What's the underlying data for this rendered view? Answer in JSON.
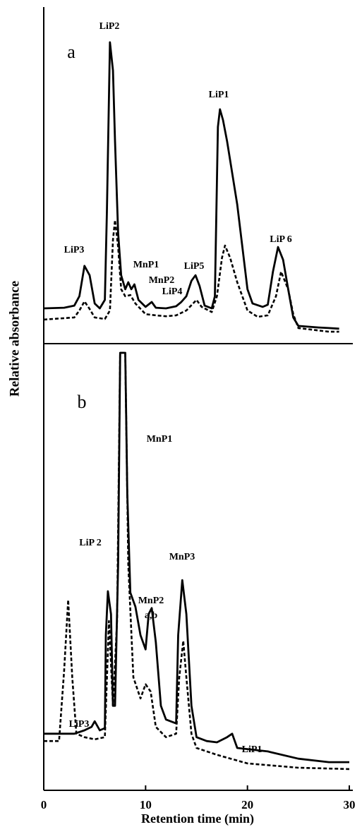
{
  "chart_data": [
    {
      "type": "line",
      "panel_label": "a",
      "ylabel": "Relative  absorbance",
      "xlim": [
        0,
        30
      ],
      "ylim": [
        0,
        100
      ],
      "annotations": [
        "LiP2",
        "LiP3",
        "MnP1",
        "MnP2",
        "LiP4",
        "LiP5",
        "LiP1",
        "LiP 6"
      ],
      "series": [
        {
          "style": "solid",
          "color": "#000000",
          "x": [
            0,
            2,
            3,
            3.5,
            4,
            4.5,
            5,
            5.5,
            6,
            6.2,
            6.5,
            6.8,
            7,
            7.3,
            7.6,
            8,
            8.3,
            8.6,
            8.9,
            9.3,
            10,
            10.6,
            11,
            12,
            13,
            13.5,
            14,
            14.5,
            14.9,
            15.3,
            15.8,
            16.5,
            16.8,
            17.1,
            17.3,
            17.6,
            18,
            19,
            20,
            20.5,
            21.5,
            22,
            22.5,
            23,
            23.5,
            24,
            24.5,
            25,
            27,
            28,
            29
          ],
          "values": [
            10,
            10.2,
            10.9,
            14,
            24,
            20.9,
            11.6,
            10,
            12.8,
            41.9,
            97.7,
            88.4,
            65.1,
            34.9,
            20.9,
            16.3,
            18.6,
            16.3,
            17.9,
            12.8,
            10.5,
            12.1,
            10.2,
            10,
            10.7,
            12.1,
            14,
            19.1,
            20.9,
            17.4,
            10.9,
            10,
            14,
            69.8,
            75.6,
            72.1,
            65.1,
            44.2,
            16.3,
            11.6,
            10.5,
            11.2,
            22.1,
            30.2,
            26,
            16.3,
            7,
            4.2,
            3.7,
            3.5,
            3.3
          ]
        },
        {
          "style": "dashed",
          "color": "#000000",
          "x": [
            0,
            3,
            3.5,
            4,
            4.5,
            5,
            6,
            6.5,
            6.8,
            7,
            7.3,
            7.6,
            8,
            8.5,
            9,
            10,
            11,
            12,
            13,
            14,
            15,
            15.5,
            16.5,
            17,
            17.5,
            17.8,
            18.3,
            19,
            20,
            21,
            22,
            22.8,
            23.3,
            24,
            24.5,
            25,
            28,
            29
          ],
          "values": [
            6.3,
            7,
            9.3,
            12.3,
            9.8,
            7,
            6.5,
            9.3,
            32.6,
            39.1,
            30.2,
            16.3,
            14,
            14.4,
            11.6,
            8.1,
            7.7,
            7.4,
            7.7,
            9.3,
            12.8,
            10.5,
            8.8,
            14,
            26.7,
            30.7,
            26.7,
            18.6,
            9.3,
            7.2,
            7.7,
            14,
            22.1,
            16.3,
            8.1,
            3.5,
            2.3,
            2.3
          ]
        }
      ]
    },
    {
      "type": "line",
      "panel_label": "b",
      "xlabel": "Retention time (min)",
      "xlim": [
        0,
        30
      ],
      "xticks": [
        0,
        10,
        20,
        30
      ],
      "ylim": [
        0,
        100
      ],
      "annotations": [
        "MnP1",
        "LiP 2",
        "MnP2",
        "a,b",
        "MnP3",
        "LiP3",
        "LiP1"
      ],
      "series": [
        {
          "style": "solid",
          "color": "#000000",
          "x": [
            0,
            3,
            4,
            4.7,
            5,
            5.5,
            6,
            6.1,
            6.3,
            6.6,
            6.8,
            7,
            7.3,
            7.5,
            8,
            8.2,
            8.5,
            9,
            9.5,
            10,
            10.3,
            10.6,
            11,
            11.5,
            12,
            13,
            13.2,
            13.6,
            14,
            14.5,
            15,
            16,
            17,
            18,
            18.5,
            19,
            22,
            25,
            28,
            30
          ],
          "values": [
            11.5,
            11.5,
            12.3,
            13.1,
            14.4,
            12.3,
            12.8,
            34.4,
            44.6,
            39.3,
            18,
            18,
            50.8,
            100,
            100,
            67.2,
            44.3,
            41,
            34.4,
            31.1,
            39.3,
            40.7,
            32.8,
            18,
            14.8,
            13.9,
            34.4,
            47.2,
            39.3,
            18,
            10.7,
            9.8,
            9.5,
            10.7,
            11.5,
            8.2,
            7.4,
            5.7,
            4.9,
            4.9
          ]
        },
        {
          "style": "dashed",
          "color": "#000000",
          "x": [
            0,
            1.5,
            2,
            2.4,
            2.8,
            3.2,
            4,
            5,
            6,
            6.4,
            6.8,
            7.2,
            7.5,
            8,
            8.3,
            8.8,
            9.5,
            10,
            10.5,
            11,
            12,
            13,
            13.3,
            13.7,
            14,
            14.5,
            15,
            17,
            20,
            25,
            30
          ],
          "values": [
            9.8,
            9.8,
            26.2,
            42.6,
            24.6,
            11.5,
            10.7,
            10.2,
            10.7,
            37.7,
            18,
            37.7,
            100,
            100,
            50.8,
            24.6,
            19.7,
            23,
            21.3,
            13.1,
            10.7,
            11.5,
            24.6,
            33.1,
            24.6,
            11.5,
            8.2,
            6.6,
            4.6,
            3.6,
            3.3
          ]
        }
      ]
    }
  ]
}
